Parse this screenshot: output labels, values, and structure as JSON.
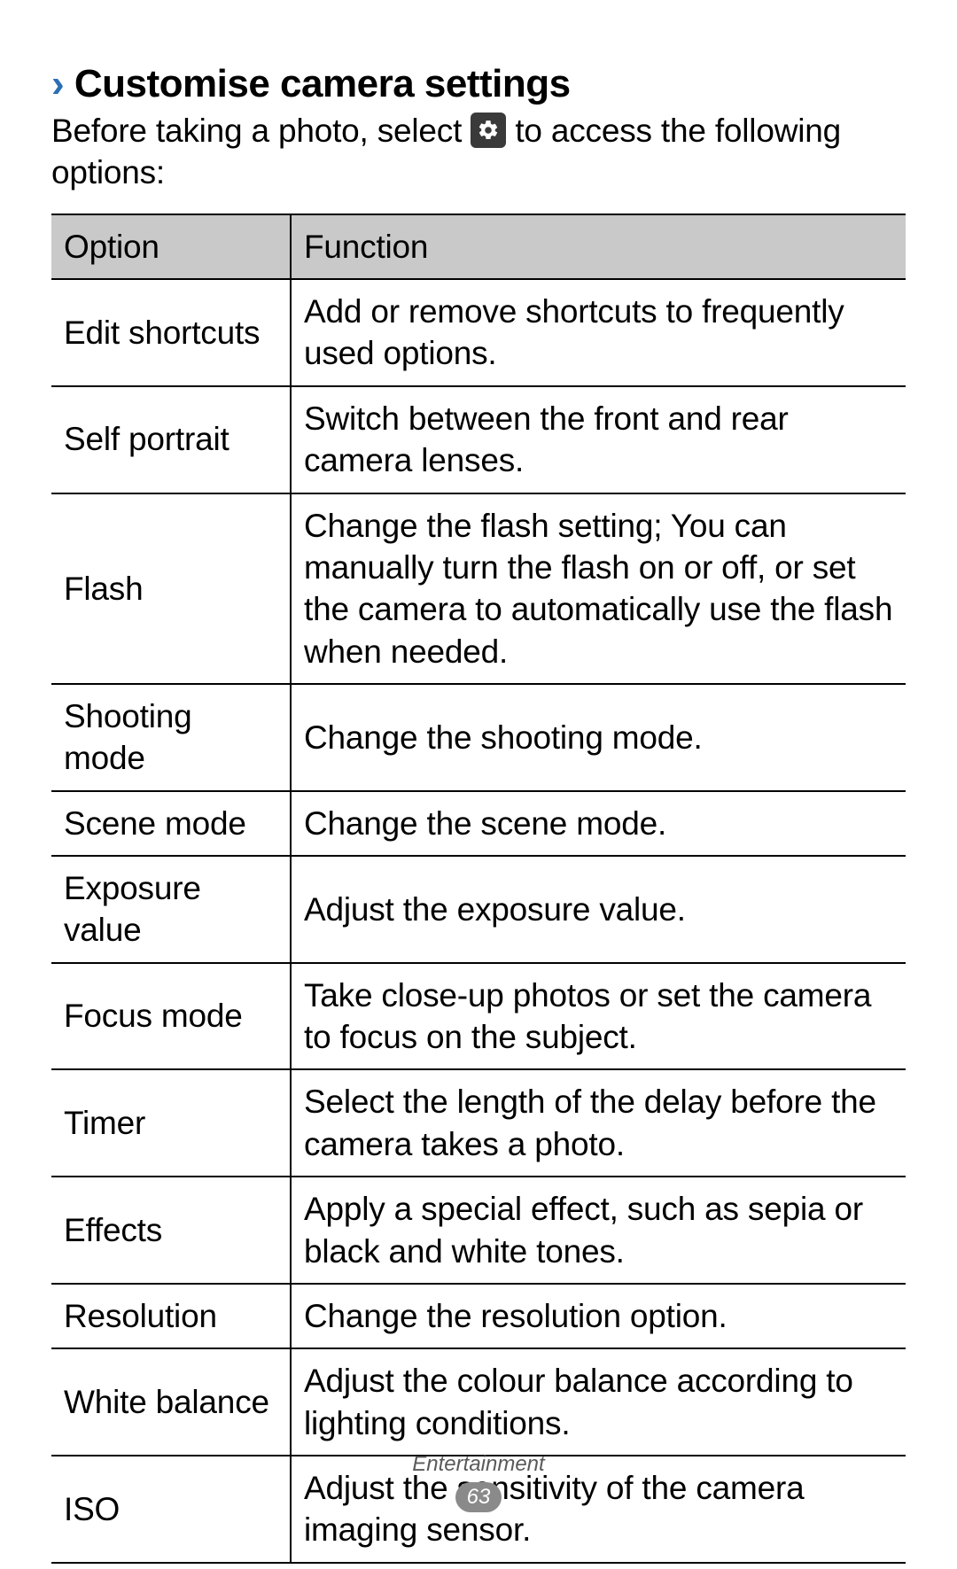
{
  "heading": {
    "chevron": "›",
    "text": "Customise camera settings"
  },
  "intro": {
    "before": "Before taking a photo, select ",
    "after": " to access the following options:"
  },
  "table": {
    "header": {
      "option": "Option",
      "function": "Function"
    },
    "rows": [
      {
        "option": "Edit shortcuts",
        "function": "Add or remove shortcuts to frequently used options."
      },
      {
        "option": "Self portrait",
        "function": "Switch between the front and rear camera lenses."
      },
      {
        "option": "Flash",
        "function": "Change the flash setting; You can manually turn the flash on or off, or set the camera to automatically use the flash when needed."
      },
      {
        "option": "Shooting mode",
        "function": "Change the shooting mode."
      },
      {
        "option": "Scene mode",
        "function": "Change the scene mode."
      },
      {
        "option": "Exposure value",
        "function": "Adjust the exposure value."
      },
      {
        "option": "Focus mode",
        "function": "Take close-up photos or set the camera to focus on the subject."
      },
      {
        "option": "Timer",
        "function": "Select the length of the delay before the camera takes a photo."
      },
      {
        "option": "Effects",
        "function": "Apply a special effect, such as sepia or black and white tones."
      },
      {
        "option": "Resolution",
        "function": "Change the resolution option."
      },
      {
        "option": "White balance",
        "function": "Adjust the colour balance according to lighting conditions."
      },
      {
        "option": "ISO",
        "function": "Adjust the sensitivity of the camera imaging sensor."
      }
    ]
  },
  "footer": {
    "section": "Entertainment",
    "page": "63"
  },
  "colors": {
    "accent": "#2a6fb5",
    "header_bg": "#c9c9c9",
    "border": "#000000",
    "icon_bg": "#3a3a3a",
    "pagenum_bg": "#8a8a8a",
    "text": "#000000",
    "footer_text": "#5a5a5a",
    "background": "#ffffff"
  },
  "typography": {
    "heading_fontsize_pt": 33,
    "body_fontsize_pt": 28,
    "footer_fontsize_pt": 18
  }
}
